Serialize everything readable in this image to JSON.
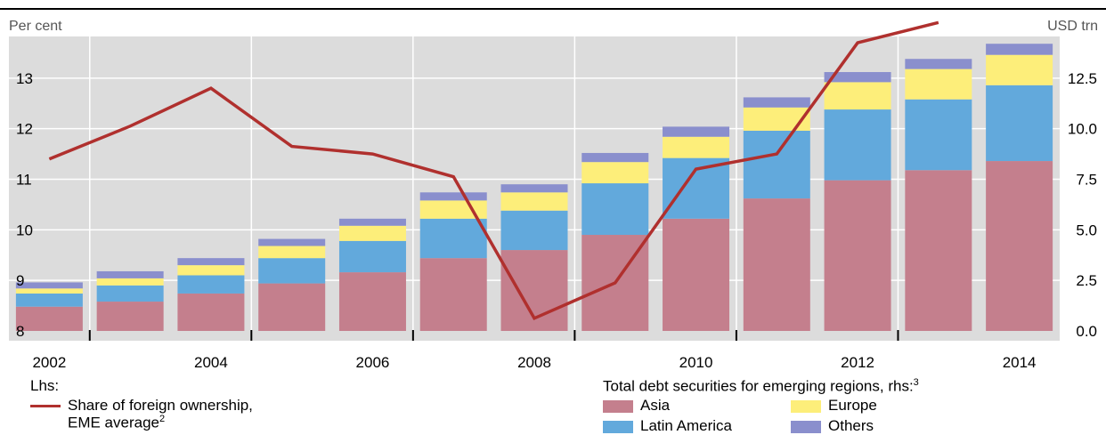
{
  "chart_data": {
    "type": "bar",
    "left_unit": "Per cent",
    "right_unit": "USD trn",
    "x_tick_labels": [
      "2002",
      "2004",
      "2006",
      "2008",
      "2010",
      "2012",
      "2014"
    ],
    "categories": [
      "2002",
      "2003",
      "2004",
      "2005",
      "2006",
      "2007",
      "2008",
      "2009",
      "2010",
      "2011",
      "2012",
      "2013",
      "2014"
    ],
    "left_axis": {
      "min": 8,
      "max": 14,
      "ticks": [
        "8",
        "9",
        "10",
        "11",
        "12",
        "13"
      ]
    },
    "right_axis": {
      "min": 0,
      "max": 15,
      "ticks": [
        "0.0",
        "2.5",
        "5.0",
        "7.5",
        "10.0",
        "12.5"
      ]
    },
    "stacked_series": [
      {
        "name": "Asia",
        "color": "#c47f8d",
        "values": [
          1.2,
          1.45,
          1.85,
          2.35,
          2.9,
          3.6,
          4.0,
          4.75,
          5.55,
          6.55,
          7.45,
          7.95,
          8.4
        ]
      },
      {
        "name": "Latin America",
        "color": "#62a9dc",
        "values": [
          0.65,
          0.8,
          0.9,
          1.25,
          1.55,
          1.95,
          1.95,
          2.55,
          3.0,
          3.35,
          3.5,
          3.5,
          3.75
        ]
      },
      {
        "name": "Europe",
        "color": "#fdee7a",
        "values": [
          0.25,
          0.35,
          0.5,
          0.6,
          0.75,
          0.9,
          0.9,
          1.05,
          1.05,
          1.15,
          1.35,
          1.5,
          1.5
        ]
      },
      {
        "name": "Others",
        "color": "#8a8fcd",
        "values": [
          0.3,
          0.35,
          0.35,
          0.35,
          0.35,
          0.4,
          0.4,
          0.45,
          0.5,
          0.5,
          0.5,
          0.5,
          0.55
        ]
      }
    ],
    "line_series": {
      "name": "Share of foreign ownership, EME average",
      "color": "#b0302e",
      "values": [
        11.4,
        12.05,
        12.8,
        11.65,
        11.5,
        11.05,
        8.25,
        8.95,
        11.2,
        11.5,
        13.7,
        14.1
      ]
    },
    "legend": {
      "lhs_title": "Lhs:",
      "line_label_1": "Share of foreign ownership,",
      "line_label_2": "EME average",
      "line_sup": "2",
      "rhs_title": "Total debt securities for emerging regions, rhs:",
      "rhs_sup": "3"
    }
  }
}
